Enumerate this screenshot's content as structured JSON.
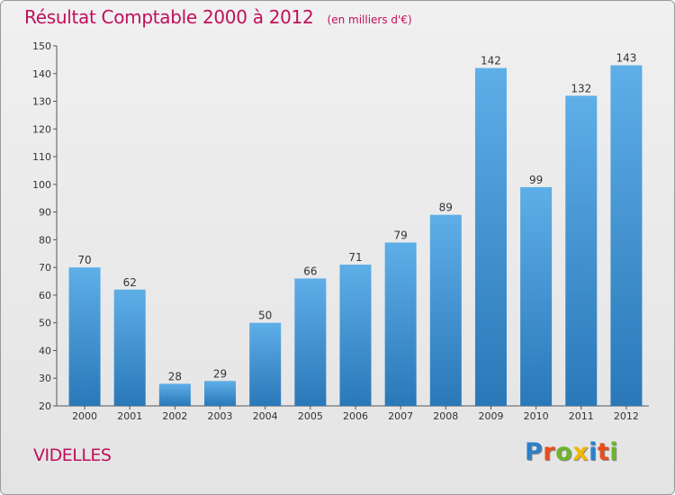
{
  "chart_data": {
    "type": "bar",
    "title": "Résultat Comptable 2000 à 2012",
    "subtitle": "(en milliers d'€)",
    "categories": [
      "2000",
      "2001",
      "2002",
      "2003",
      "2004",
      "2005",
      "2006",
      "2007",
      "2008",
      "2009",
      "2010",
      "2011",
      "2012"
    ],
    "values": [
      70,
      62,
      28,
      29,
      50,
      66,
      71,
      79,
      89,
      142,
      99,
      132,
      143
    ],
    "ylim": [
      20,
      150
    ],
    "yticks": [
      20,
      30,
      40,
      50,
      60,
      70,
      80,
      90,
      100,
      110,
      120,
      130,
      140,
      150
    ],
    "xlabel": "",
    "ylabel": "",
    "grid": false,
    "colors": {
      "bar_light": "#5eaee8",
      "bar_dark": "#2a78b8",
      "title": "#c0105a"
    }
  },
  "footer": {
    "town": "VIDELLES",
    "logo_letters": [
      {
        "char": "P",
        "color": "#2b80c8"
      },
      {
        "char": "r",
        "color": "#e84e1b"
      },
      {
        "char": "o",
        "color": "#6cb52d"
      },
      {
        "char": "x",
        "color": "#f2b705"
      },
      {
        "char": "i",
        "color": "#2b80c8"
      },
      {
        "char": "t",
        "color": "#e84e1b"
      },
      {
        "char": "i",
        "color": "#6cb52d"
      }
    ]
  }
}
